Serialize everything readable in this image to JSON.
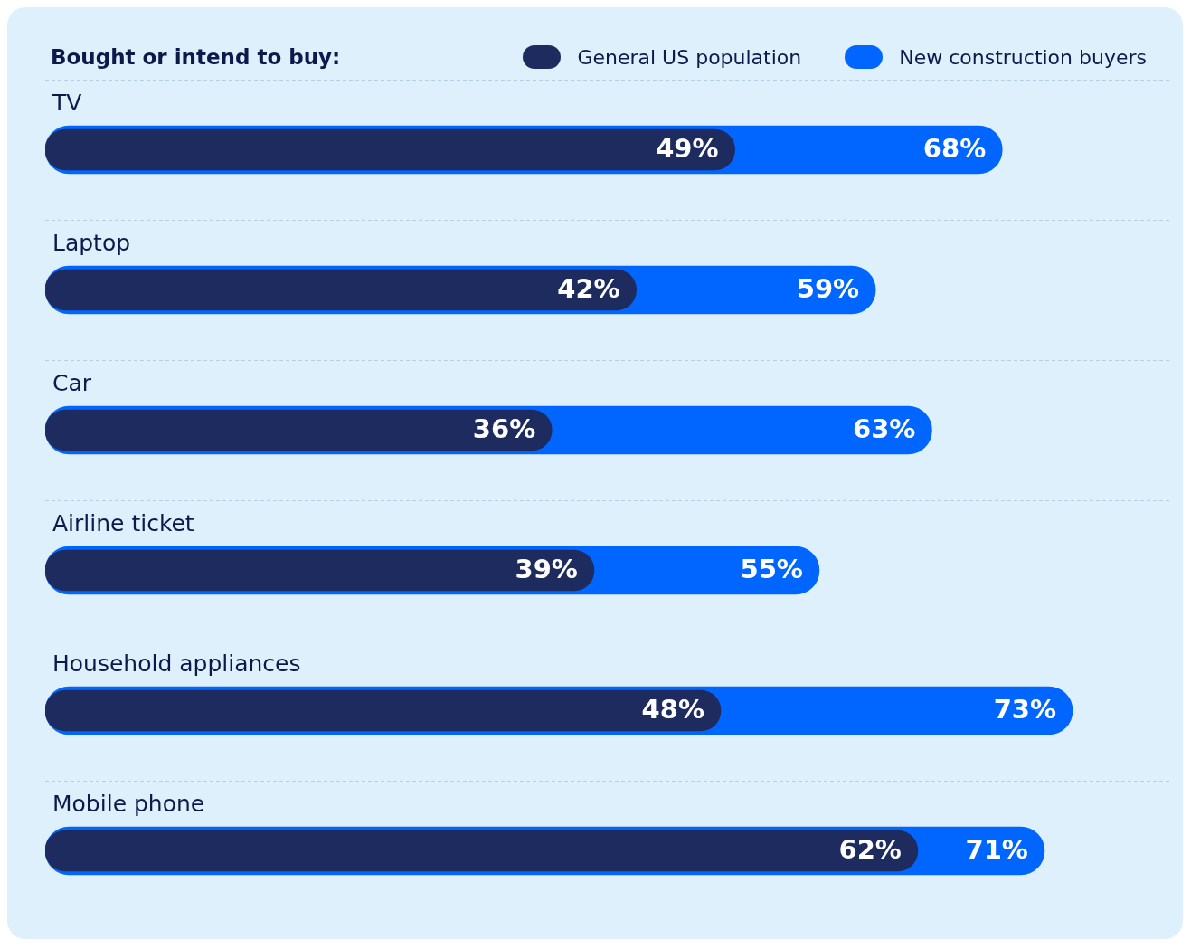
{
  "chart_data": {
    "type": "bar",
    "orientation": "horizontal",
    "title": "Bought or intend to buy:",
    "categories": [
      "TV",
      "Laptop",
      "Car",
      "Airline ticket",
      "Household appliances",
      "Mobile phone"
    ],
    "series": [
      {
        "name": "General US population",
        "color": "#1e2b5e",
        "values": [
          49,
          42,
          36,
          39,
          48,
          62
        ],
        "value_labels": [
          "49%",
          "42%",
          "36%",
          "39%",
          "48%",
          "62%"
        ]
      },
      {
        "name": "New construction buyers",
        "color": "#0066ff",
        "values": [
          68,
          59,
          63,
          55,
          73,
          71
        ],
        "value_labels": [
          "68%",
          "59%",
          "63%",
          "55%",
          "73%",
          "71%"
        ]
      }
    ],
    "legend": "top right",
    "grid": "y"
  }
}
